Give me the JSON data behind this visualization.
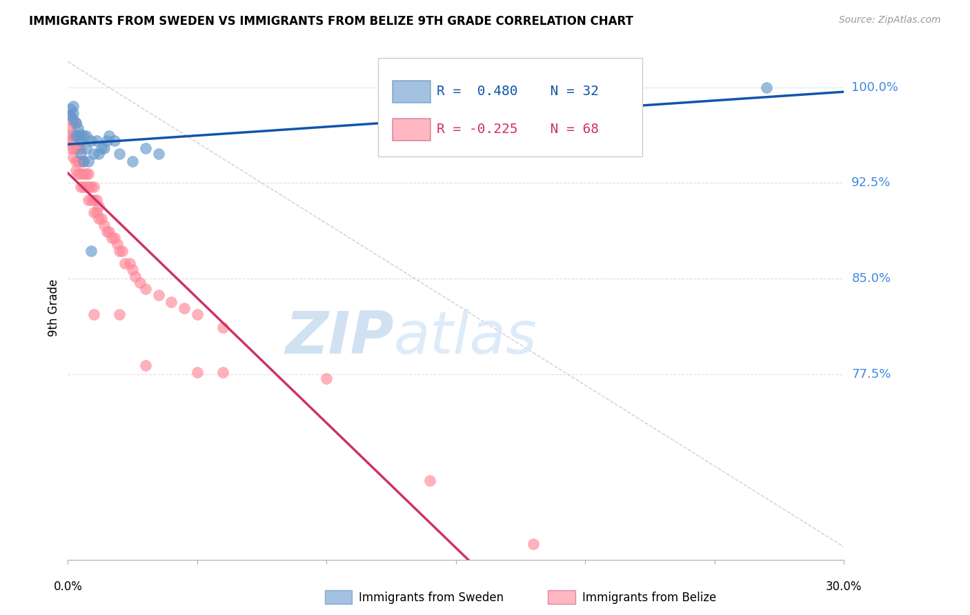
{
  "title": "IMMIGRANTS FROM SWEDEN VS IMMIGRANTS FROM BELIZE 9TH GRADE CORRELATION CHART",
  "source": "Source: ZipAtlas.com",
  "ylabel": "9th Grade",
  "y_ticks": [
    0.775,
    0.85,
    0.925,
    1.0
  ],
  "y_tick_labels": [
    "77.5%",
    "85.0%",
    "92.5%",
    "100.0%"
  ],
  "x_min": 0.0,
  "x_max": 0.3,
  "y_min": 0.63,
  "y_max": 1.025,
  "sweden_R": 0.48,
  "sweden_N": 32,
  "belize_R": -0.225,
  "belize_N": 68,
  "sweden_color": "#6699CC",
  "belize_color": "#FF8899",
  "trend_sweden_color": "#1155AA",
  "trend_belize_color": "#CC3366",
  "diag_color": "#CCBBCC",
  "watermark_zip": "ZIP",
  "watermark_atlas": "atlas",
  "legend_label_sweden": "Immigrants from Sweden",
  "legend_label_belize": "Immigrants from Belize",
  "sweden_points_x": [
    0.001,
    0.001,
    0.002,
    0.002,
    0.002,
    0.003,
    0.003,
    0.004,
    0.004,
    0.005,
    0.005,
    0.005,
    0.006,
    0.006,
    0.007,
    0.007,
    0.008,
    0.009,
    0.009,
    0.01,
    0.011,
    0.012,
    0.013,
    0.014,
    0.015,
    0.016,
    0.018,
    0.02,
    0.025,
    0.03,
    0.035,
    0.27
  ],
  "sweden_points_y": [
    0.978,
    0.983,
    0.975,
    0.98,
    0.985,
    0.962,
    0.972,
    0.962,
    0.968,
    0.948,
    0.958,
    0.963,
    0.942,
    0.962,
    0.952,
    0.962,
    0.942,
    0.872,
    0.958,
    0.948,
    0.958,
    0.948,
    0.952,
    0.952,
    0.958,
    0.962,
    0.958,
    0.948,
    0.942,
    0.952,
    0.948,
    1.0
  ],
  "belize_points_x": [
    0.001,
    0.001,
    0.001,
    0.001,
    0.001,
    0.002,
    0.002,
    0.002,
    0.002,
    0.002,
    0.003,
    0.003,
    0.003,
    0.003,
    0.003,
    0.004,
    0.004,
    0.004,
    0.004,
    0.005,
    0.005,
    0.005,
    0.005,
    0.006,
    0.006,
    0.006,
    0.007,
    0.007,
    0.008,
    0.008,
    0.008,
    0.009,
    0.009,
    0.01,
    0.01,
    0.01,
    0.011,
    0.011,
    0.012,
    0.012,
    0.013,
    0.014,
    0.015,
    0.016,
    0.017,
    0.018,
    0.019,
    0.02,
    0.021,
    0.022,
    0.024,
    0.025,
    0.026,
    0.028,
    0.03,
    0.035,
    0.04,
    0.045,
    0.05,
    0.06,
    0.01,
    0.02,
    0.03,
    0.05,
    0.06,
    0.1,
    0.14,
    0.18
  ],
  "belize_points_y": [
    0.978,
    0.968,
    0.963,
    0.958,
    0.952,
    0.972,
    0.962,
    0.958,
    0.952,
    0.945,
    0.972,
    0.962,
    0.952,
    0.942,
    0.935,
    0.962,
    0.952,
    0.942,
    0.932,
    0.952,
    0.942,
    0.932,
    0.922,
    0.942,
    0.932,
    0.922,
    0.932,
    0.922,
    0.932,
    0.922,
    0.912,
    0.922,
    0.912,
    0.922,
    0.912,
    0.902,
    0.912,
    0.902,
    0.907,
    0.897,
    0.897,
    0.892,
    0.887,
    0.887,
    0.882,
    0.882,
    0.877,
    0.872,
    0.872,
    0.862,
    0.862,
    0.857,
    0.852,
    0.847,
    0.842,
    0.837,
    0.832,
    0.827,
    0.822,
    0.812,
    0.822,
    0.822,
    0.782,
    0.777,
    0.777,
    0.772,
    0.692,
    0.642
  ]
}
